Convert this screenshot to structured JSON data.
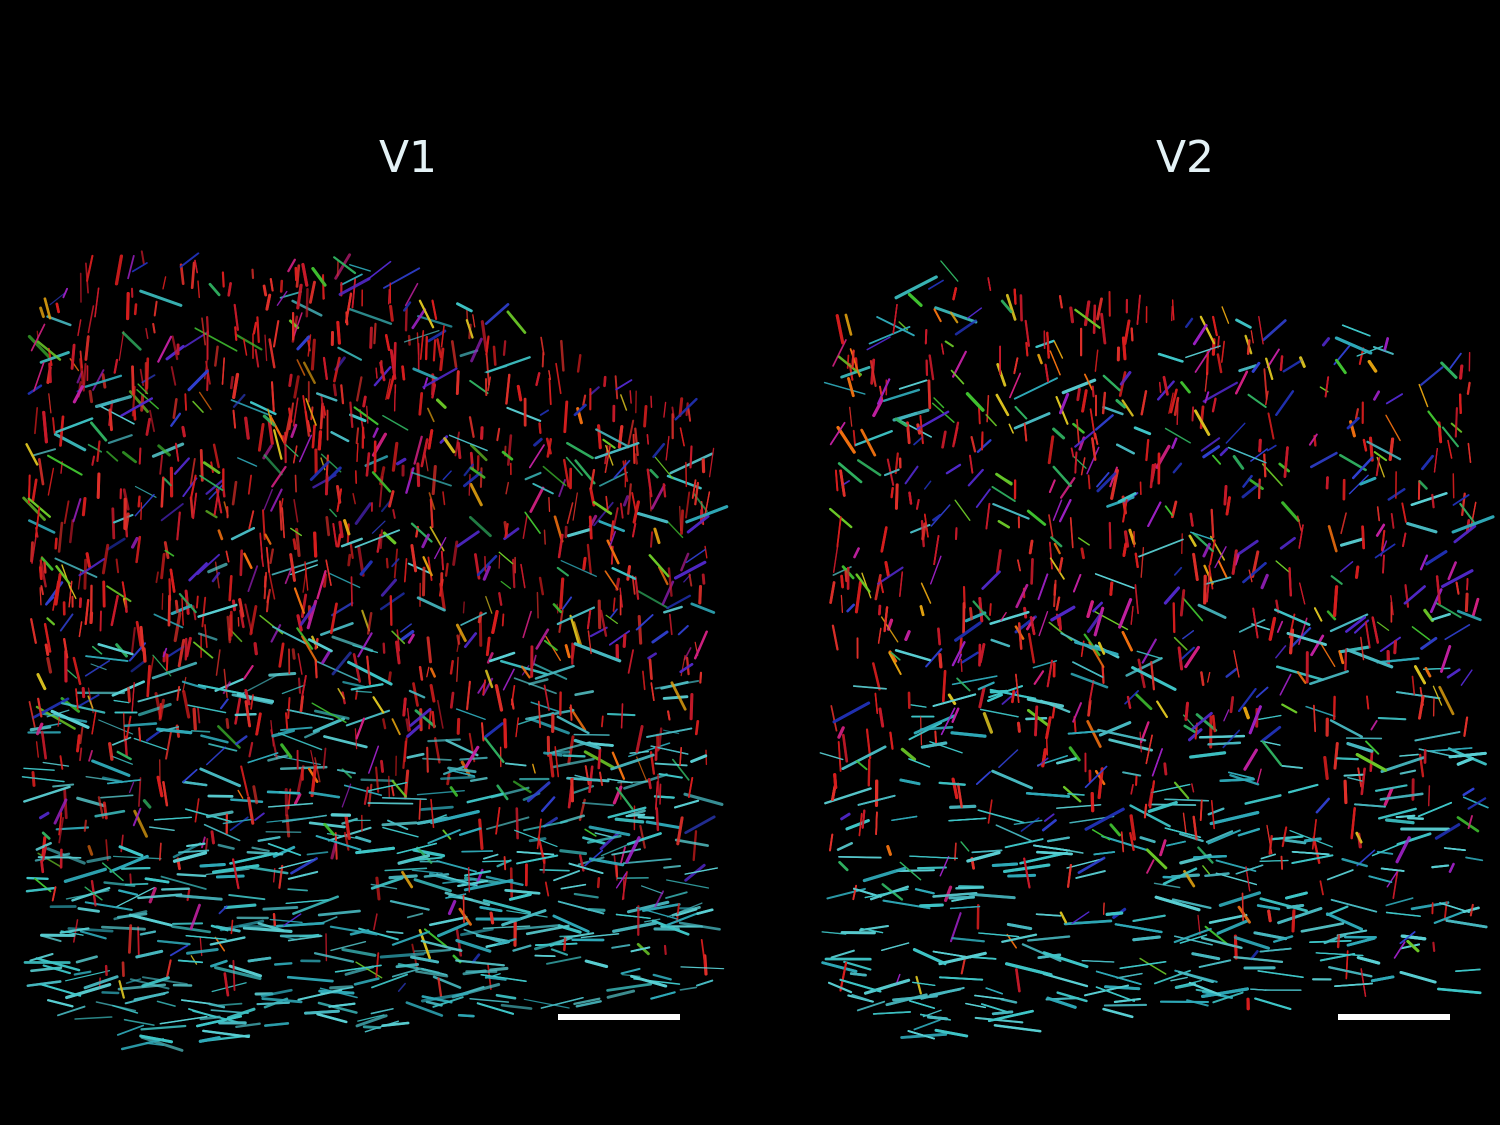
{
  "panels": [
    {
      "label": "V1"
    },
    {
      "label": "V2"
    }
  ]
}
